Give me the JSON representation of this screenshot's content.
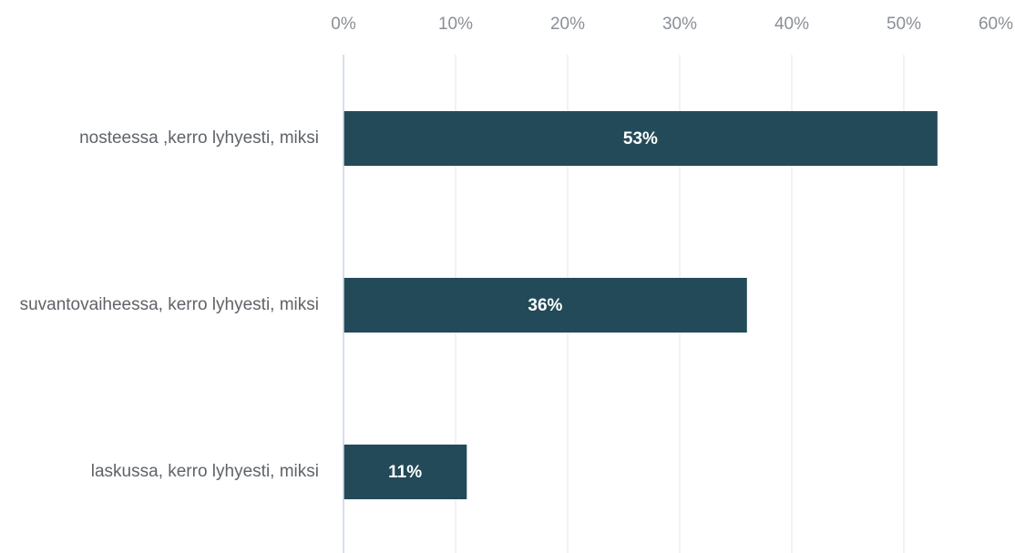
{
  "chart_data": {
    "type": "bar",
    "orientation": "horizontal",
    "categories": [
      "nosteessa ,kerro lyhyesti, miksi",
      "suvantovaiheessa, kerro lyhyesti, miksi",
      "laskussa, kerro lyhyesti, miksi"
    ],
    "values": [
      53,
      36,
      11
    ],
    "data_labels": [
      "53%",
      "36%",
      "11%"
    ],
    "xlim": [
      0,
      60
    ],
    "x_ticks": [
      0,
      10,
      20,
      30,
      40,
      50,
      60
    ],
    "x_tick_labels": [
      "0%",
      "10%",
      "20%",
      "30%",
      "40%",
      "50%",
      "60%"
    ],
    "x_axis_position": "top",
    "grid": true,
    "bar_color": "#234a58",
    "title": "",
    "xlabel": "",
    "ylabel": ""
  }
}
